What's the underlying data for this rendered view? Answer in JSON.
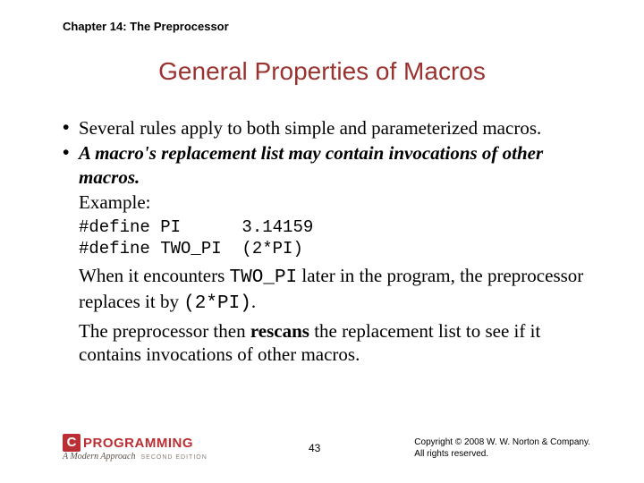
{
  "chapter_header": "Chapter 14: The Preprocessor",
  "title": "General Properties of Macros",
  "bullet1": "Several rules apply to both simple and parameterized macros.",
  "bullet2": "A macro's replacement list may contain invocations of other macros.",
  "example_label": "Example:",
  "code_line1": "#define PI      3.14159",
  "code_line2": "#define TWO_PI  (2*PI)",
  "para1_a": "When it encounters ",
  "para1_code1": "TWO_PI",
  "para1_b": " later in the program, the preprocessor replaces it by ",
  "para1_code2": "(2*PI)",
  "para1_c": ".",
  "para2_a": "The preprocessor then ",
  "para2_bold": "rescans",
  "para2_b": " the replacement list to see if it contains invocations of other macros.",
  "logo_c": "C",
  "logo_word": "PROGRAMMING",
  "logo_sub": "A Modern Approach",
  "logo_edition": "SECOND EDITION",
  "page_number": "43",
  "copyright_line1": "Copyright © 2008 W. W. Norton & Company.",
  "copyright_line2": "All rights reserved."
}
